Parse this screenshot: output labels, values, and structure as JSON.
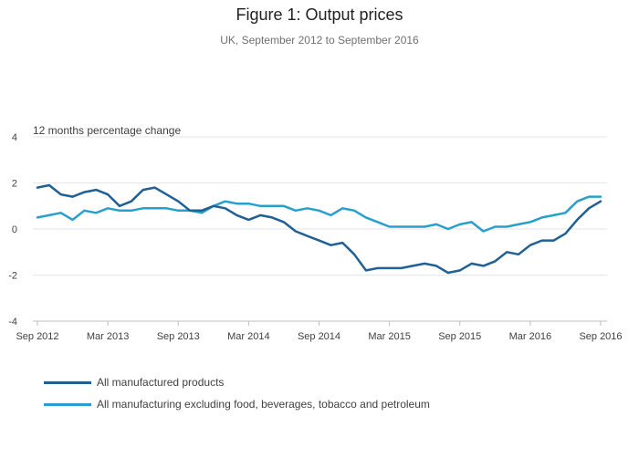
{
  "title": "Figure 1: Output prices",
  "subtitle": "UK, September 2012 to September 2016",
  "chart_data": {
    "type": "line",
    "title": "Figure 1: Output prices",
    "subtitle": "UK, September 2012 to September 2016",
    "ylabel": "12 months percentage change",
    "xlabel": "",
    "ylim": [
      -4,
      4
    ],
    "yticks": [
      -4,
      -2,
      0,
      2,
      4
    ],
    "xtick_labels": [
      "Sep 2012",
      "Mar 2013",
      "Sep 2013",
      "Mar 2014",
      "Sep 2014",
      "Mar 2015",
      "Sep 2015",
      "Mar 2016",
      "Sep 2016"
    ],
    "x": [
      "Sep 2012",
      "Oct 2012",
      "Nov 2012",
      "Dec 2012",
      "Jan 2013",
      "Feb 2013",
      "Mar 2013",
      "Apr 2013",
      "May 2013",
      "Jun 2013",
      "Jul 2013",
      "Aug 2013",
      "Sep 2013",
      "Oct 2013",
      "Nov 2013",
      "Dec 2013",
      "Jan 2014",
      "Feb 2014",
      "Mar 2014",
      "Apr 2014",
      "May 2014",
      "Jun 2014",
      "Jul 2014",
      "Aug 2014",
      "Sep 2014",
      "Oct 2014",
      "Nov 2014",
      "Dec 2014",
      "Jan 2015",
      "Feb 2015",
      "Mar 2015",
      "Apr 2015",
      "May 2015",
      "Jun 2015",
      "Jul 2015",
      "Aug 2015",
      "Sep 2015",
      "Oct 2015",
      "Nov 2015",
      "Dec 2015",
      "Jan 2016",
      "Feb 2016",
      "Mar 2016",
      "Apr 2016",
      "May 2016",
      "Jun 2016",
      "Jul 2016",
      "Aug 2016",
      "Sep 2016"
    ],
    "series": [
      {
        "name": "All manufactured products",
        "color": "#206095",
        "values": [
          1.8,
          1.9,
          1.5,
          1.4,
          1.6,
          1.7,
          1.5,
          1.0,
          1.2,
          1.7,
          1.8,
          1.5,
          1.2,
          0.8,
          0.8,
          1.0,
          0.9,
          0.6,
          0.4,
          0.6,
          0.5,
          0.3,
          -0.1,
          -0.3,
          -0.5,
          -0.7,
          -0.6,
          -1.1,
          -1.8,
          -1.7,
          -1.7,
          -1.7,
          -1.6,
          -1.5,
          -1.6,
          -1.9,
          -1.8,
          -1.5,
          -1.6,
          -1.4,
          -1.0,
          -1.1,
          -0.7,
          -0.5,
          -0.5,
          -0.2,
          0.4,
          0.9,
          1.2
        ]
      },
      {
        "name": "All manufacturing excluding food, beverages, tobacco and petroleum",
        "color": "#27a0cc",
        "values": [
          0.5,
          0.6,
          0.7,
          0.4,
          0.8,
          0.7,
          0.9,
          0.8,
          0.8,
          0.9,
          0.9,
          0.9,
          0.8,
          0.8,
          0.7,
          1.0,
          1.2,
          1.1,
          1.1,
          1.0,
          1.0,
          1.0,
          0.8,
          0.9,
          0.8,
          0.6,
          0.9,
          0.8,
          0.5,
          0.3,
          0.1,
          0.1,
          0.1,
          0.1,
          0.2,
          0.0,
          0.2,
          0.3,
          -0.1,
          0.1,
          0.1,
          0.2,
          0.3,
          0.5,
          0.6,
          0.7,
          1.2,
          1.4,
          1.4
        ]
      }
    ],
    "grid": true,
    "legend_position": "bottom-left"
  }
}
